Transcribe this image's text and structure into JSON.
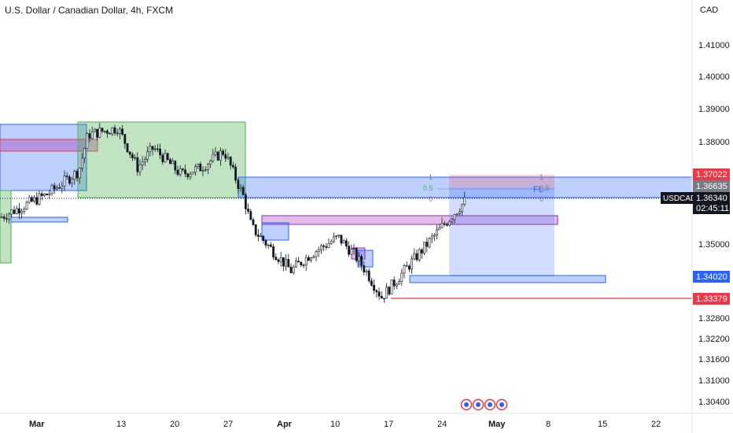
{
  "header": {
    "title": "U.S. Dollar / Canadian Dollar, 4h, FXCM"
  },
  "price_axis": {
    "currency": "CAD",
    "ticks": [
      "1.41000",
      "1.40000",
      "1.39000",
      "1.38000",
      "1.35000",
      "1.32800",
      "1.32200",
      "1.31600",
      "1.31000",
      "1.30400"
    ]
  },
  "time_axis": {
    "ticks": [
      "Mar",
      "13",
      "20",
      "27",
      "Apr",
      "10",
      "17",
      "24",
      "May",
      "8",
      "15",
      "22"
    ]
  },
  "price_tags": {
    "stop": "1.37022",
    "target_top": "1.36635",
    "symbol": "USDCAD",
    "last": "1.36340",
    "countdown": "02:45:11",
    "support": "1.34020",
    "low": "1.33379"
  },
  "fib_labels": [
    "1",
    "0.5",
    "0",
    "1",
    "0.5",
    "0"
  ],
  "drawing_text": {
    "fib_tag": "FL"
  },
  "colors": {
    "up": "#089981",
    "down": "#f23645",
    "candle": "#131722",
    "zone_blue": "#2962ff",
    "zone_green": "#4caf50",
    "zone_purple": "#9c27b0",
    "zone_red": "#f23645"
  },
  "chart_data": {
    "type": "candlestick",
    "symbol": "USDCAD",
    "timeframe": "4h",
    "title": "U.S. Dollar / Canadian Dollar, 4h, FXCM",
    "ylabel": "CAD",
    "ylim": [
      1.302,
      1.418
    ],
    "last_price": 1.3634,
    "key_levels": [
      1.37022,
      1.36635,
      1.3634,
      1.3402,
      1.33379
    ],
    "trend_path": [
      {
        "x": "Mar",
        "y": 1.358
      },
      {
        "x": "Mar 6",
        "y": 1.365
      },
      {
        "x": "Mar 9",
        "y": 1.372
      },
      {
        "x": "Mar 10",
        "y": 1.383
      },
      {
        "x": "Mar 13",
        "y": 1.385
      },
      {
        "x": "Mar 15",
        "y": 1.373
      },
      {
        "x": "Mar 17",
        "y": 1.379
      },
      {
        "x": "Mar 20",
        "y": 1.371
      },
      {
        "x": "Mar 24",
        "y": 1.373
      },
      {
        "x": "Mar 27",
        "y": 1.378
      },
      {
        "x": "Mar 29",
        "y": 1.364
      },
      {
        "x": "Mar 31",
        "y": 1.355
      },
      {
        "x": "Apr 3",
        "y": 1.342
      },
      {
        "x": "Apr 6",
        "y": 1.347
      },
      {
        "x": "Apr 10",
        "y": 1.352
      },
      {
        "x": "Apr 12",
        "y": 1.347
      },
      {
        "x": "Apr 14",
        "y": 1.342
      },
      {
        "x": "Apr 15",
        "y": 1.334
      },
      {
        "x": "Apr 17",
        "y": 1.338
      },
      {
        "x": "Apr 20",
        "y": 1.345
      },
      {
        "x": "Apr 24",
        "y": 1.356
      },
      {
        "x": "Apr 26",
        "y": 1.3634
      }
    ]
  }
}
